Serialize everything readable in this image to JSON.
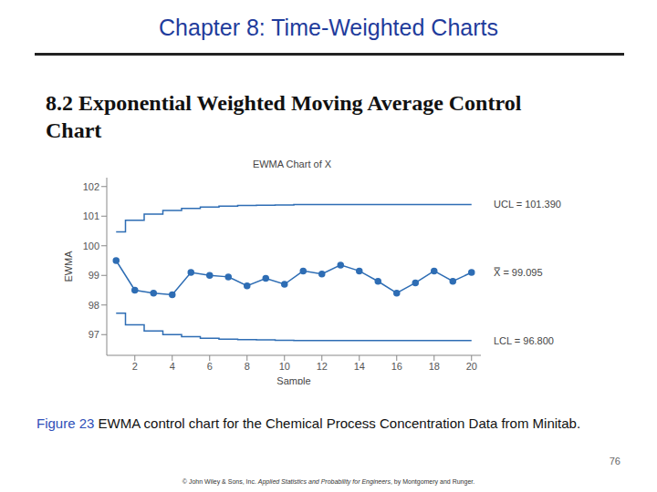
{
  "header": {
    "title": "Chapter 8: Time-Weighted Charts"
  },
  "section": {
    "title": "8.2 Exponential Weighted Moving Average Control Chart"
  },
  "chart_data": {
    "type": "line",
    "title": "EWMA Chart of X",
    "x_label": "Sample",
    "y_label": "EWMA",
    "x": [
      1,
      2,
      3,
      4,
      5,
      6,
      7,
      8,
      9,
      10,
      11,
      12,
      13,
      14,
      15,
      16,
      17,
      18,
      19,
      20
    ],
    "values": [
      99.5,
      98.5,
      98.4,
      98.35,
      99.1,
      99.0,
      98.95,
      98.65,
      98.9,
      98.7,
      99.15,
      99.05,
      99.35,
      99.15,
      98.8,
      98.4,
      98.75,
      99.15,
      98.8,
      99.1
    ],
    "ucl": [
      100.47,
      100.86,
      101.07,
      101.19,
      101.26,
      101.31,
      101.34,
      101.36,
      101.37,
      101.38,
      101.39,
      101.39,
      101.39,
      101.39,
      101.39,
      101.39,
      101.39,
      101.39,
      101.39,
      101.39
    ],
    "lcl": [
      97.72,
      97.33,
      97.12,
      97.0,
      96.93,
      96.88,
      96.85,
      96.83,
      96.82,
      96.81,
      96.8,
      96.8,
      96.8,
      96.8,
      96.8,
      96.8,
      96.8,
      96.8,
      96.8,
      96.8
    ],
    "reference_lines": [
      {
        "value": 101.39,
        "label": "UCL = 101.390"
      },
      {
        "value": 99.095,
        "label": "X̿ = 99.095"
      },
      {
        "value": 96.8,
        "label": "LCL = 96.800"
      }
    ],
    "xlim": [
      0.5,
      20.5
    ],
    "ylim": [
      96.3,
      102.3
    ],
    "xticks": [
      2,
      4,
      6,
      8,
      10,
      12,
      14,
      16,
      18,
      20
    ],
    "yticks": [
      97,
      98,
      99,
      100,
      101,
      102
    ],
    "color": "#2e6db4",
    "marker": "circle",
    "grid": false
  },
  "caption": {
    "label": "Figure 23",
    "text": "EWMA control chart for the Chemical Process Concentration Data from Minitab."
  },
  "page_number": 76,
  "footer": {
    "before": "© John Wiley & Sons, Inc.",
    "book": "Applied Statistics and Probability for Engineers",
    "after": ", by Montgomery and Runger."
  }
}
